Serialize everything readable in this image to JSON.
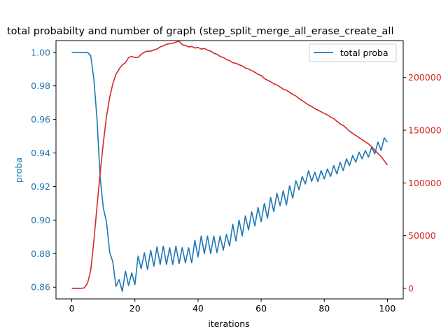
{
  "chart_data": {
    "type": "line",
    "title": "total probabilty and number of graph (step_split_merge_all_erase_create_all",
    "xlabel": "iterations",
    "ylabel": "proba",
    "xlim": [
      -5,
      105
    ],
    "ylim_left": [
      0.853,
      1.007
    ],
    "ylim_right": [
      -10000,
      235000
    ],
    "x_ticks": [
      "0",
      "20",
      "40",
      "60",
      "80",
      "100"
    ],
    "y_left_ticks": [
      "0.86",
      "0.88",
      "0.90",
      "0.92",
      "0.94",
      "0.96",
      "0.98",
      "1.00"
    ],
    "y_right_ticks": [
      "0",
      "50000",
      "100000",
      "150000",
      "200000"
    ],
    "legend": {
      "position": "top-right",
      "entries": [
        "total proba"
      ]
    },
    "colors": {
      "proba": "#1f77b4",
      "graphs": "#d62728"
    },
    "series": [
      {
        "name": "total proba",
        "axis": "left",
        "color": "#1f77b4",
        "values": [
          1.0,
          1.0,
          1.0,
          1.0,
          1.0,
          1.0,
          0.998,
          0.984,
          0.96,
          0.925,
          0.907,
          0.899,
          0.881,
          0.875,
          0.8605,
          0.8645,
          0.8575,
          0.8695,
          0.861,
          0.8685,
          0.8615,
          0.8785,
          0.871,
          0.8805,
          0.8705,
          0.882,
          0.8725,
          0.884,
          0.8735,
          0.8845,
          0.8735,
          0.8835,
          0.8735,
          0.8845,
          0.874,
          0.8835,
          0.8745,
          0.8835,
          0.8745,
          0.888,
          0.878,
          0.8905,
          0.88,
          0.8905,
          0.88,
          0.8905,
          0.8805,
          0.8905,
          0.882,
          0.8915,
          0.8845,
          0.8975,
          0.8875,
          0.9,
          0.8905,
          0.9025,
          0.894,
          0.905,
          0.8965,
          0.9075,
          0.899,
          0.91,
          0.901,
          0.9135,
          0.905,
          0.916,
          0.9085,
          0.9175,
          0.909,
          0.9205,
          0.913,
          0.9235,
          0.918,
          0.926,
          0.9215,
          0.9295,
          0.923,
          0.9285,
          0.923,
          0.9295,
          0.9245,
          0.9305,
          0.926,
          0.9325,
          0.9275,
          0.9345,
          0.9295,
          0.9365,
          0.9325,
          0.9385,
          0.9345,
          0.9405,
          0.9365,
          0.9415,
          0.9375,
          0.9435,
          0.9395,
          0.9465,
          0.9415,
          0.949,
          0.9465
        ]
      },
      {
        "name": "",
        "axis": "right",
        "color": "#d62728",
        "values": [
          0,
          0,
          0,
          0,
          500,
          5000,
          17000,
          45000,
          78000,
          110000,
          138000,
          163000,
          181000,
          194000,
          203000,
          208000,
          212000,
          214000,
          219000,
          220000,
          219000,
          219000,
          222000,
          224000,
          225000,
          225000,
          226000,
          227000,
          229000,
          230000,
          231500,
          232000,
          232500,
          233500,
          234500,
          231000,
          230500,
          229000,
          229500,
          228000,
          228500,
          227000,
          227500,
          226000,
          225000,
          223000,
          222000,
          220000,
          219000,
          217000,
          216000,
          214000,
          213500,
          212000,
          211000,
          209000,
          208000,
          206500,
          205000,
          203000,
          202000,
          199000,
          197500,
          196000,
          194000,
          193000,
          191000,
          189000,
          188000,
          186000,
          184000,
          182500,
          180000,
          178000,
          176000,
          174000,
          172500,
          170500,
          169000,
          167500,
          166000,
          164500,
          162500,
          161000,
          158500,
          156000,
          154500,
          152000,
          149000,
          147000,
          145000,
          143000,
          141000,
          139000,
          137000,
          134500,
          131000,
          128000,
          125000,
          121000,
          117000
        ]
      }
    ]
  }
}
